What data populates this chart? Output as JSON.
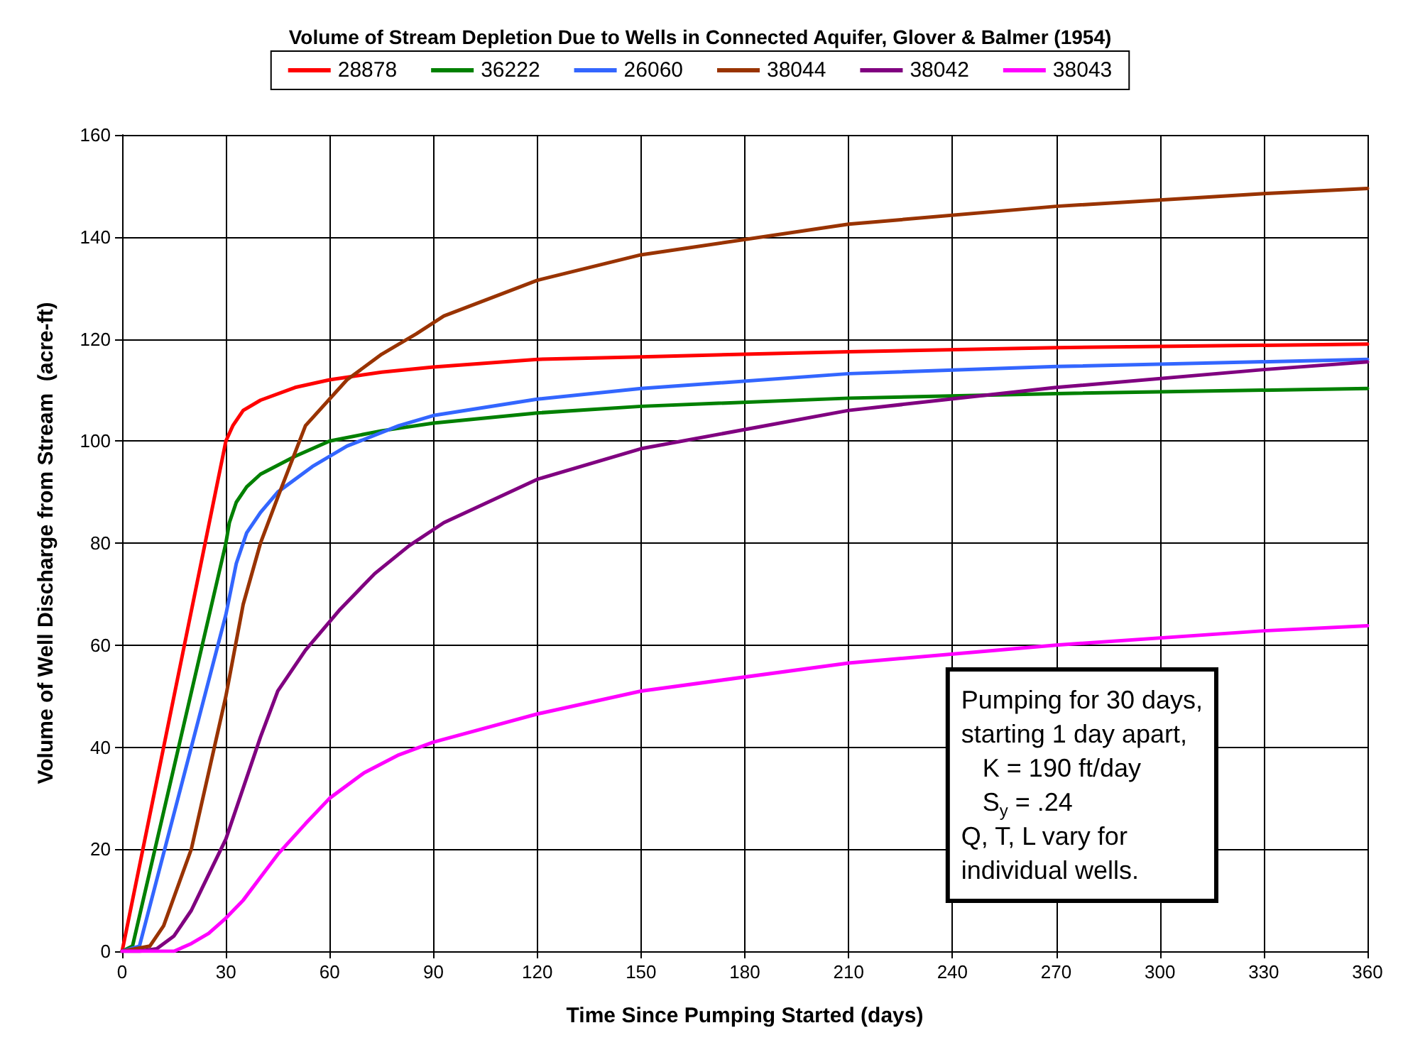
{
  "chart_data": {
    "type": "line",
    "title": "Volume of Stream Depletion Due to Wells in Connected Aquifer, Glover & Balmer (1954)",
    "xlabel": "Time Since Pumping Started (days)",
    "ylabel": "Volume of Well Discharge from Stream  (acre-ft)",
    "xlim": [
      0,
      360
    ],
    "xticks": [
      0,
      30,
      60,
      90,
      120,
      150,
      180,
      210,
      240,
      270,
      300,
      330,
      360
    ],
    "ylim": [
      0,
      160
    ],
    "yticks": [
      0,
      20,
      40,
      60,
      80,
      100,
      120,
      140,
      160
    ],
    "grid": true,
    "legend": "top",
    "marker": "none",
    "line_style": "solid",
    "annotations": [
      "Pumping for 30 days,\nstarting 1 day apart,\n   K = 190 ft/day\n   S$_{y}$ = .24\nQ, T, L vary for\nindividual wells."
    ],
    "series": [
      {
        "name": "28878",
        "color": "#ff0000",
        "x": [
          0,
          30,
          32,
          35,
          40,
          50,
          60,
          75,
          90,
          120,
          150,
          210,
          270,
          360
        ],
        "values": [
          0,
          100,
          103,
          106,
          108,
          110.5,
          112,
          113.5,
          114.5,
          116,
          116.5,
          117.5,
          118.3,
          119
        ]
      },
      {
        "name": "36222",
        "color": "#008000",
        "x": [
          0,
          3,
          30,
          31,
          33,
          36,
          40,
          50,
          60,
          75,
          90,
          120,
          150,
          210,
          270,
          360
        ],
        "values": [
          0,
          1,
          80,
          84,
          88,
          91,
          93.5,
          97,
          100,
          102,
          103.5,
          105.5,
          106.8,
          108.4,
          109.3,
          110.3
        ]
      },
      {
        "name": "26060",
        "color": "#3366ff",
        "x": [
          0,
          5,
          30,
          33,
          36,
          40,
          45,
          55,
          65,
          80,
          90,
          120,
          150,
          210,
          270,
          360
        ],
        "values": [
          0,
          1,
          66,
          76,
          82,
          86,
          90,
          95,
          99,
          103,
          105,
          108.2,
          110.3,
          113.2,
          114.6,
          116
        ]
      },
      {
        "name": "38044",
        "color": "#993300",
        "x": [
          0,
          8,
          12,
          20,
          30,
          35,
          40,
          45,
          53,
          65,
          75,
          85,
          93,
          120,
          150,
          210,
          270,
          330,
          360
        ],
        "values": [
          0,
          1,
          5,
          20,
          50,
          68,
          80,
          89,
          103,
          112,
          117,
          121,
          124.5,
          131.5,
          136.5,
          142.5,
          146,
          148.5,
          149.5
        ]
      },
      {
        "name": "38042",
        "color": "#800080",
        "x": [
          0,
          5,
          10,
          15,
          20,
          25,
          30,
          35,
          40,
          45,
          53,
          63,
          73,
          83,
          93,
          120,
          150,
          210,
          270,
          330,
          360
        ],
        "values": [
          0,
          0,
          0.5,
          3,
          8,
          15,
          22,
          32,
          42,
          51,
          59,
          67,
          74,
          79.5,
          84,
          92.5,
          98.5,
          106,
          110.5,
          114,
          115.5
        ]
      },
      {
        "name": "38043",
        "color": "#ff00ff",
        "x": [
          0,
          15,
          20,
          25,
          30,
          35,
          40,
          45,
          53,
          60,
          70,
          80,
          90,
          120,
          150,
          210,
          270,
          330,
          360
        ],
        "values": [
          0,
          0,
          1.5,
          3.5,
          6.5,
          10,
          14.5,
          19,
          25,
          30,
          35,
          38.5,
          41,
          46.5,
          51,
          56.5,
          60,
          62.8,
          63.8
        ]
      }
    ]
  }
}
